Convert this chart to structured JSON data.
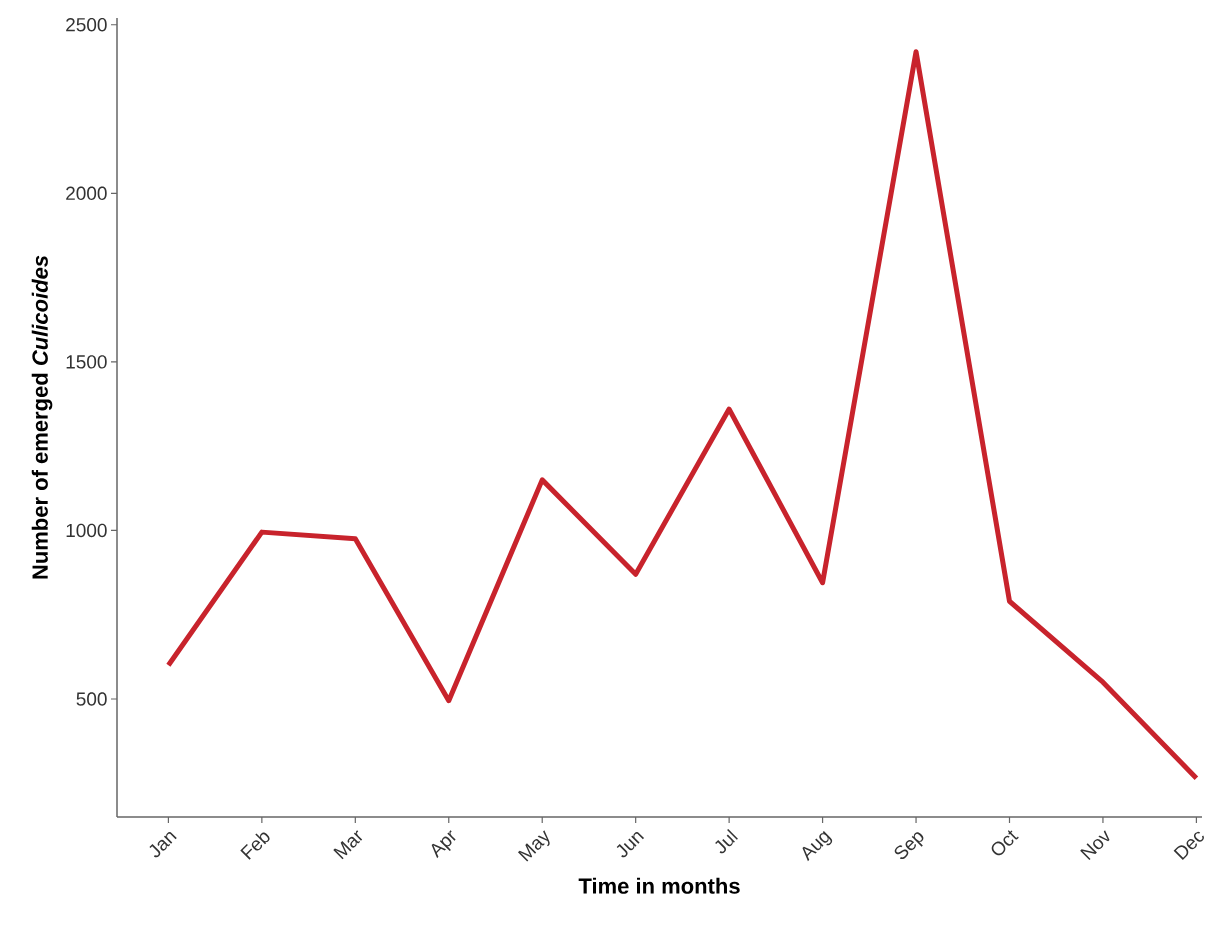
{
  "chart_data": {
    "type": "line",
    "xlabel": "Time in months",
    "ylabel": "Number of emerged *Culicoides*",
    "categories": [
      "Jan",
      "Feb",
      "Mar",
      "Apr",
      "May",
      "Jun",
      "Jul",
      "Aug",
      "Sep",
      "Oct",
      "Nov",
      "Dec"
    ],
    "values": [
      600,
      995,
      975,
      495,
      1150,
      870,
      1360,
      845,
      2420,
      790,
      550,
      265
    ],
    "color": "#c8232c",
    "line_style": "solid",
    "ylim": [
      150,
      2520
    ],
    "yticks": [
      500,
      1000,
      1500,
      2000,
      2500
    ]
  }
}
